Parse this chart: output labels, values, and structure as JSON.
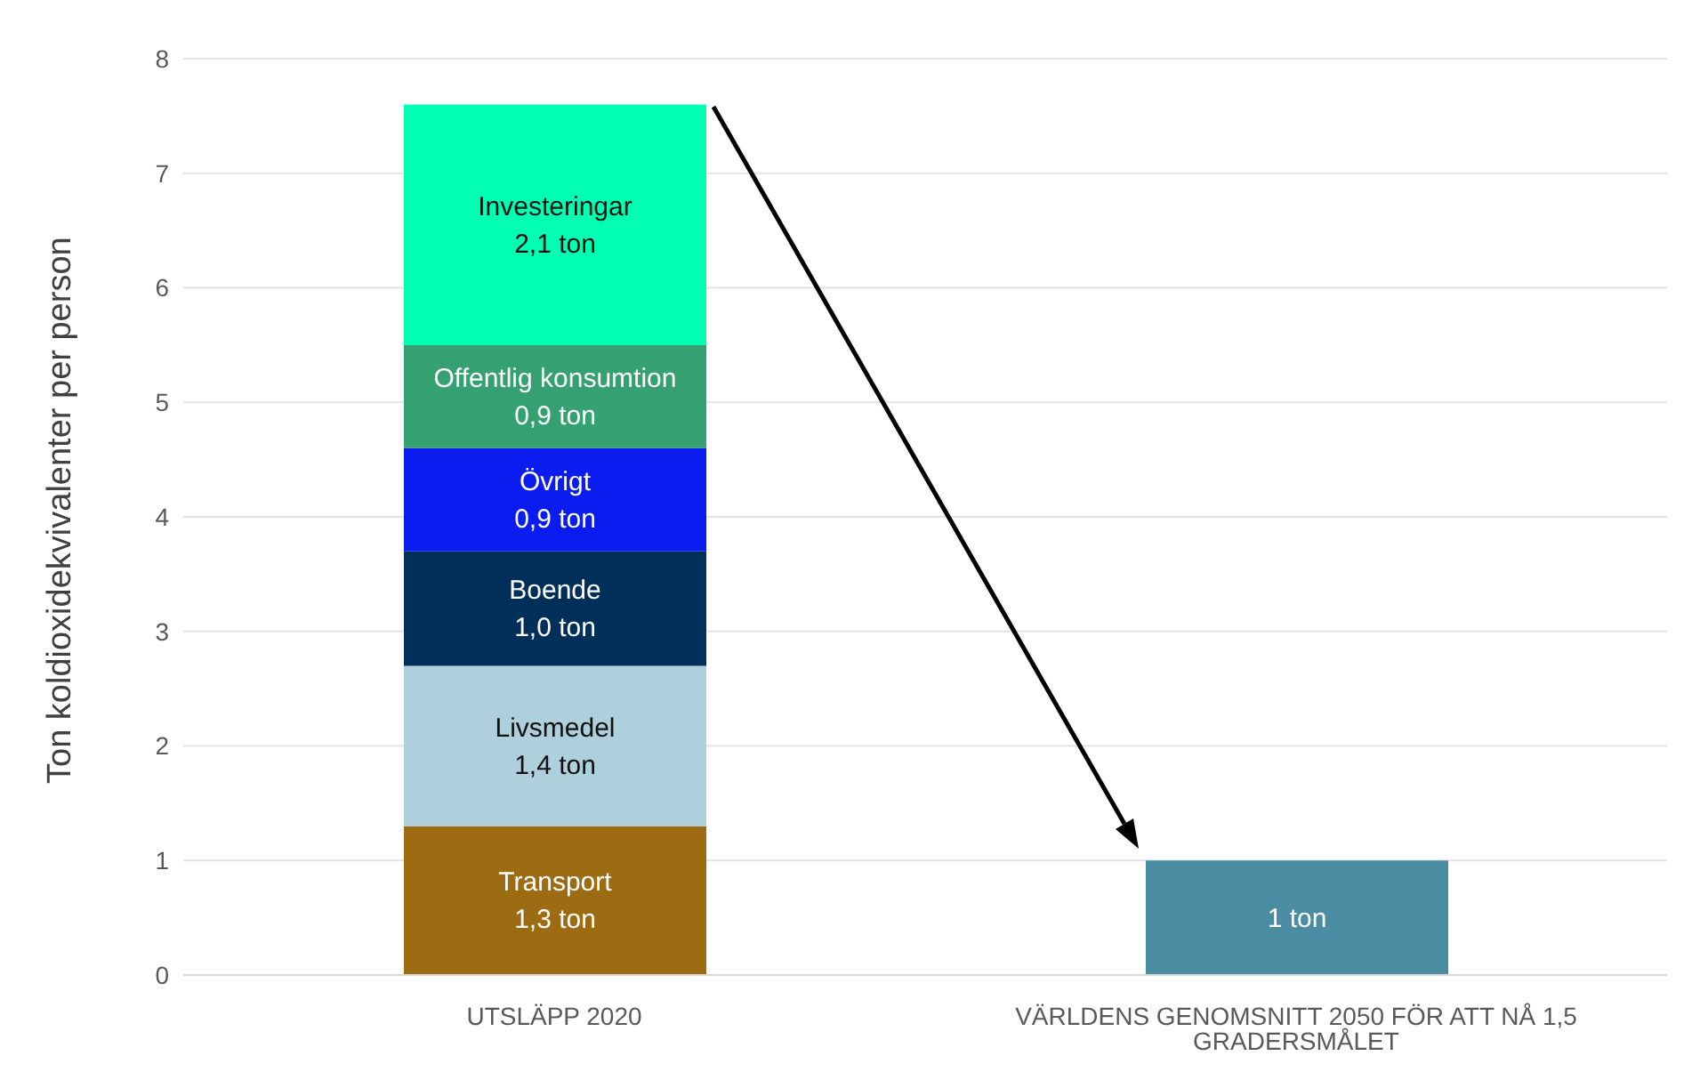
{
  "chart_data": {
    "type": "bar",
    "stacked": true,
    "ylabel": "Ton koldioxidekvivalenter per person",
    "categories": [
      "UTSLÄPP 2020",
      "VÄRLDENS GENOMSNITT 2050 FÖR ATT NÅ 1,5 GRADERSMÅLET"
    ],
    "series": [
      {
        "name": "Transport",
        "color": "#9c6b12",
        "values": [
          1.3,
          null
        ],
        "value_labels": [
          "1,3 ton",
          null
        ]
      },
      {
        "name": "Livsmedel",
        "color": "#aecfdc",
        "values": [
          1.4,
          null
        ],
        "value_labels": [
          "1,4 ton",
          null
        ]
      },
      {
        "name": "Boende",
        "color": "#00305a",
        "values": [
          1.0,
          null
        ],
        "value_labels": [
          "1,0 ton",
          null
        ]
      },
      {
        "name": "Övrigt",
        "color": "#0a1cf0",
        "values": [
          0.9,
          null
        ],
        "value_labels": [
          "0,9 ton",
          null
        ]
      },
      {
        "name": "Offentlig konsumtion",
        "color": "#35a070",
        "values": [
          0.9,
          null
        ],
        "value_labels": [
          "0,9 ton",
          null
        ]
      },
      {
        "name": "Investeringar",
        "color": "#00ffb3",
        "values": [
          2.1,
          null
        ],
        "value_labels": [
          "2,1 ton",
          null
        ]
      },
      {
        "color": "#4a8da3",
        "values": [
          null,
          1
        ],
        "value_labels": [
          null,
          "1 ton"
        ]
      }
    ],
    "ylim": [
      0,
      8
    ],
    "yticks": [
      0,
      1,
      2,
      3,
      4,
      5,
      6,
      7,
      8
    ],
    "grid": "y"
  }
}
